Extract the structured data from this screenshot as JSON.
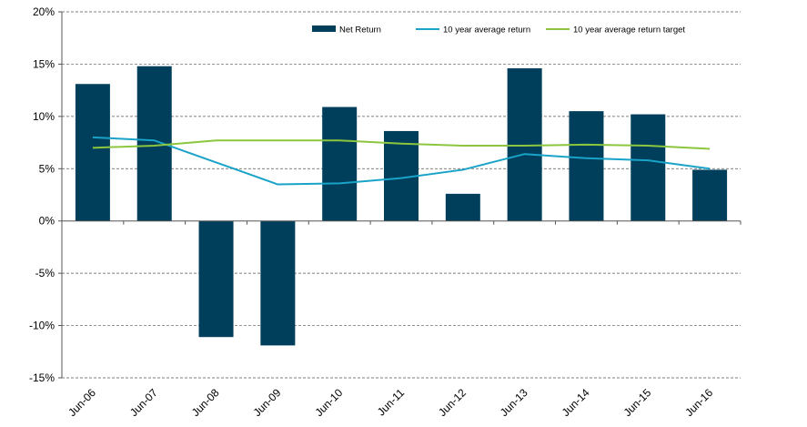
{
  "chart_data": {
    "type": "bar",
    "categories": [
      "Jun-06",
      "Jun-07",
      "Jun-08",
      "Jun-09",
      "Jun-10",
      "Jun-11",
      "Jun-12",
      "Jun-13",
      "Jun-14",
      "Jun-15",
      "Jun-16"
    ],
    "series": [
      {
        "name": "Net Return",
        "kind": "bar",
        "color": "#003f5c",
        "values": [
          13.1,
          14.8,
          -11.1,
          -11.9,
          10.9,
          8.6,
          2.6,
          14.6,
          10.5,
          10.2,
          4.9
        ]
      },
      {
        "name": "10 year average return",
        "kind": "line",
        "color": "#1aa3c8",
        "values": [
          8.0,
          7.7,
          5.6,
          3.5,
          3.6,
          4.1,
          4.9,
          6.4,
          6.0,
          5.8,
          5.0
        ]
      },
      {
        "name": "10 year average return target",
        "kind": "line",
        "color": "#8cc63f",
        "values": [
          7.0,
          7.2,
          7.7,
          7.7,
          7.7,
          7.4,
          7.2,
          7.2,
          7.3,
          7.2,
          6.9
        ]
      }
    ],
    "ylim": [
      -15,
      20
    ],
    "yticks": [
      -15,
      -10,
      -5,
      0,
      5,
      10,
      15,
      20
    ],
    "ytick_labels": [
      "-15%",
      "-10%",
      "-5%",
      "0%",
      "5%",
      "10%",
      "15%",
      "20%"
    ],
    "grid": "horizontal dashed",
    "legend": "top-right",
    "title": "",
    "xlabel": "",
    "ylabel": ""
  }
}
